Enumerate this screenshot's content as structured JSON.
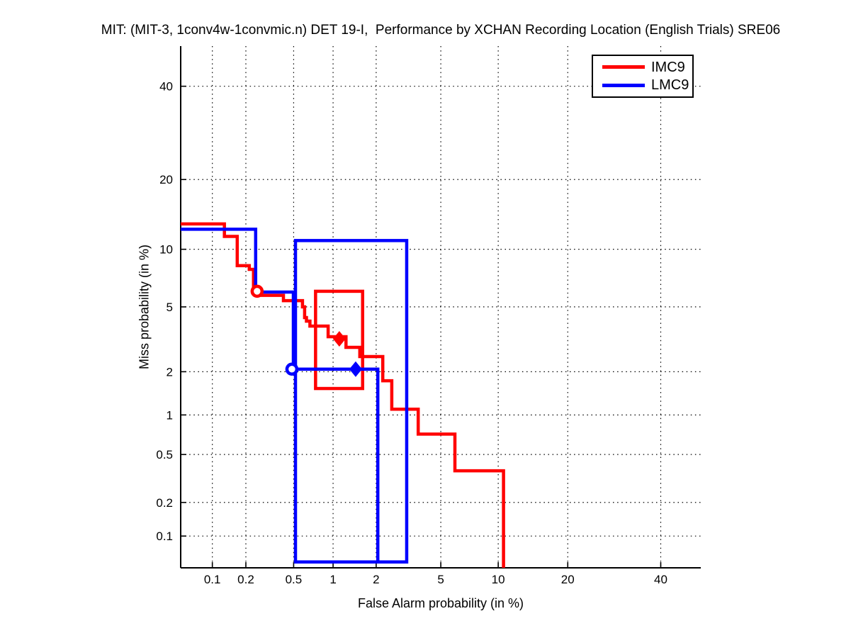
{
  "colors": {
    "background": "#ffffff",
    "axis": "#000000",
    "grid": "#000000",
    "imc9": "#ff0000",
    "lmc9": "#0000ff"
  },
  "chart_data": {
    "type": "line",
    "subtype": "DET curve, probit (normal-deviate) scale on both axes",
    "title": "MIT: (MIT-3, 1conv4w-1convmic.n) DET 19-I,  Performance by XCHAN Recording Location (English Trials) SRE06",
    "xlabel": "False Alarm probability (in %)",
    "ylabel": "Miss probability (in %)",
    "xlim": [
      0.05,
      50
    ],
    "ylim": [
      0.05,
      50
    ],
    "xticks": [
      "0.1",
      "0.2",
      "0.5",
      "1",
      "2",
      "5",
      "10",
      "20",
      "40"
    ],
    "yticks": [
      "40",
      "20",
      "10",
      "5",
      "2",
      "1",
      "0.5",
      "0.2",
      "0.1"
    ],
    "grid": "dotted",
    "legend_position": "top-right",
    "series": [
      {
        "name": "IMC9",
        "color": "#ff0000",
        "points_fa_miss_pct": [
          [
            0.05,
            13.1
          ],
          [
            0.129,
            13.1
          ],
          [
            0.129,
            11.5
          ],
          [
            0.168,
            11.5
          ],
          [
            0.168,
            8.3
          ],
          [
            0.214,
            8.3
          ],
          [
            0.214,
            7.95
          ],
          [
            0.233,
            7.95
          ],
          [
            0.233,
            6.4
          ],
          [
            0.25,
            6.4
          ],
          [
            0.25,
            5.8
          ],
          [
            0.414,
            5.8
          ],
          [
            0.414,
            5.42
          ],
          [
            0.587,
            5.42
          ],
          [
            0.587,
            5.0
          ],
          [
            0.61,
            5.0
          ],
          [
            0.61,
            4.34
          ],
          [
            0.63,
            4.34
          ],
          [
            0.63,
            4.14
          ],
          [
            0.67,
            4.14
          ],
          [
            0.67,
            3.87
          ],
          [
            0.92,
            3.87
          ],
          [
            0.92,
            3.34
          ],
          [
            1.24,
            3.34
          ],
          [
            1.24,
            2.87
          ],
          [
            1.55,
            2.87
          ],
          [
            1.55,
            2.51
          ],
          [
            2.21,
            2.51
          ],
          [
            2.21,
            1.74
          ],
          [
            2.53,
            1.74
          ],
          [
            2.53,
            1.1
          ],
          [
            3.69,
            1.1
          ],
          [
            3.69,
            0.72
          ],
          [
            5.99,
            0.72
          ],
          [
            5.99,
            0.37
          ],
          [
            10.6,
            0.37
          ],
          [
            10.6,
            0.05
          ]
        ],
        "markers": [
          {
            "shape": "circle",
            "fa_pct": 0.25,
            "miss_pct": 6.1
          },
          {
            "shape": "diamond",
            "fa_pct": 1.11,
            "miss_pct": 3.24
          }
        ],
        "box_fa_pct": [
          0.74,
          1.62
        ],
        "box_miss_pct": [
          1.54,
          6.1
        ]
      },
      {
        "name": "LMC9",
        "color": "#0000ff",
        "points_fa_miss_pct": [
          [
            0.05,
            12.4
          ],
          [
            0.243,
            12.4
          ],
          [
            0.243,
            6.04
          ],
          [
            0.497,
            6.04
          ],
          [
            0.497,
            2.08
          ],
          [
            2.05,
            2.08
          ],
          [
            2.05,
            0.057
          ]
        ],
        "markers": [
          {
            "shape": "circle",
            "fa_pct": 0.484,
            "miss_pct": 2.08
          },
          {
            "shape": "diamond",
            "fa_pct": 1.45,
            "miss_pct": 2.08
          }
        ],
        "box_fa_pct": [
          0.517,
          3.14
        ],
        "box_miss_pct": [
          0.057,
          11.0
        ]
      }
    ]
  }
}
